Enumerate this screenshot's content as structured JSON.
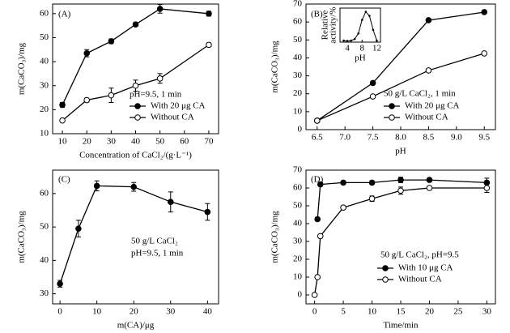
{
  "chart_data": [
    {
      "type": "line",
      "annotations": [
        "(A)",
        "pH=9.5, 1 min"
      ],
      "xlabel": "Concentration of CaCl₂/(g·L⁻¹)",
      "ylabel": "m(CaCO₃)/mg",
      "xlim": [
        6,
        74
      ],
      "xticks": [
        10,
        20,
        30,
        40,
        50,
        60,
        70
      ],
      "ylim": [
        10,
        64
      ],
      "yticks": [
        10,
        20,
        30,
        40,
        50,
        60
      ],
      "legend": "lower right",
      "series": [
        {
          "name": "With 20 μg CA",
          "color": "#000000",
          "fill": "#000000",
          "x": [
            10,
            20,
            30,
            40,
            50,
            70
          ],
          "values": [
            22,
            43.5,
            48.5,
            55.5,
            62,
            60
          ],
          "errors": [
            1,
            1.5,
            1,
            0.8,
            1.8,
            1
          ]
        },
        {
          "name": "Without CA",
          "color": "#000000",
          "fill": "#ffffff",
          "x": [
            10,
            20,
            30,
            40,
            50,
            70
          ],
          "values": [
            15.5,
            24,
            26,
            30,
            33,
            47
          ],
          "errors": [
            0.6,
            0.8,
            3,
            2.3,
            2,
            0.8
          ]
        }
      ]
    },
    {
      "type": "line",
      "annotations": [
        "(B)",
        "50 g/L CaCl₂, 1 min"
      ],
      "xlabel": "pH",
      "ylabel": "m(CaCO₃)/mg",
      "xlim": [
        6.3,
        9.7
      ],
      "xticks": [
        6.5,
        {
          "value": 7,
          "label": "7.0"
        },
        7.5,
        {
          "value": 8,
          "label": "8.0"
        },
        8.5,
        {
          "value": 9,
          "label": "9.0"
        },
        9.5
      ],
      "ylim": [
        0,
        70
      ],
      "yticks": [
        0,
        10,
        20,
        30,
        40,
        50,
        60,
        70
      ],
      "legend": "lower right",
      "series": [
        {
          "name": "With 20 μg CA",
          "color": "#000000",
          "fill": "#000000",
          "x": [
            6.5,
            7.5,
            8.5,
            9.5
          ],
          "values": [
            5,
            26,
            61,
            65.5
          ]
        },
        {
          "name": "Without CA",
          "color": "#000000",
          "fill": "#ffffff",
          "x": [
            6.5,
            7.5,
            8.5,
            9.5
          ],
          "values": [
            5,
            18.5,
            33,
            42.5
          ]
        }
      ],
      "inset": {
        "xlabel": "pH",
        "ylabel": [
          "Relative",
          "activity/%"
        ],
        "xlim": [
          2,
          13
        ],
        "xticks": [
          4,
          8,
          12
        ],
        "ylim": [
          0,
          110
        ],
        "x": [
          3,
          4,
          5,
          6,
          7,
          8,
          9,
          10,
          11,
          12
        ],
        "values": [
          5,
          3,
          5,
          10,
          28,
          72,
          98,
          85,
          40,
          5
        ]
      }
    },
    {
      "type": "line",
      "annotations": [
        "(C)",
        "50 g/L CaCl₂",
        "pH=9.5, 1 min"
      ],
      "xlabel": "m(CA)/μg",
      "ylabel": "m(CaCO₃)/mg",
      "xlim": [
        -2,
        43
      ],
      "xticks": [
        0,
        10,
        20,
        30,
        40
      ],
      "ylim": [
        27,
        67
      ],
      "yticks": [
        30,
        40,
        50,
        60
      ],
      "series": [
        {
          "color": "#000000",
          "fill": "#000000",
          "x": [
            0,
            5,
            10,
            20,
            30,
            40
          ],
          "values": [
            33,
            49.5,
            62.3,
            62,
            57.5,
            54.5
          ],
          "errors": [
            1,
            2.5,
            1.5,
            1.3,
            3,
            2.5
          ]
        }
      ]
    },
    {
      "type": "line",
      "annotations": [
        "(D)",
        "50 g/L CaCl₂, pH=9.5"
      ],
      "xlabel": "Time/min",
      "ylabel": "m(CaCO₃)/mg",
      "xlim": [
        -1.5,
        31.5
      ],
      "xticks": [
        0,
        5,
        10,
        15,
        20,
        25,
        30
      ],
      "ylim": [
        -5,
        70
      ],
      "yticks": [
        0,
        10,
        20,
        30,
        40,
        50,
        60,
        70
      ],
      "legend": "lower right",
      "series": [
        {
          "name": "With 10 μg CA",
          "color": "#000000",
          "fill": "#000000",
          "x": [
            0.5,
            1,
            5,
            10,
            15,
            20,
            30
          ],
          "values": [
            42.5,
            62,
            63,
            63,
            64.5,
            64.5,
            63
          ],
          "errors": [
            1,
            1,
            0.8,
            1,
            1.5,
            1,
            2.5
          ]
        },
        {
          "name": "Without CA",
          "color": "#000000",
          "fill": "#ffffff",
          "x": [
            0,
            0.5,
            1,
            5,
            10,
            15,
            20,
            30
          ],
          "values": [
            0,
            10,
            33,
            49,
            54,
            58.5,
            60,
            60
          ],
          "errors": [
            0.5,
            0.8,
            1,
            1,
            1.5,
            2,
            1,
            2.5
          ]
        }
      ]
    }
  ]
}
